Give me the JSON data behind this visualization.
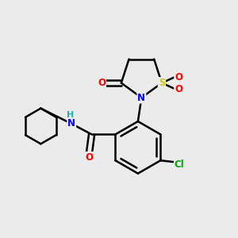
{
  "background_color": "#ebebeb",
  "bond_color": "#000000",
  "atom_colors": {
    "O": "#ff0000",
    "N": "#0000ff",
    "S": "#cccc00",
    "Cl": "#00aa00",
    "C": "#000000",
    "H": "#20b0b0"
  },
  "figsize": [
    3.0,
    3.0
  ],
  "dpi": 100
}
